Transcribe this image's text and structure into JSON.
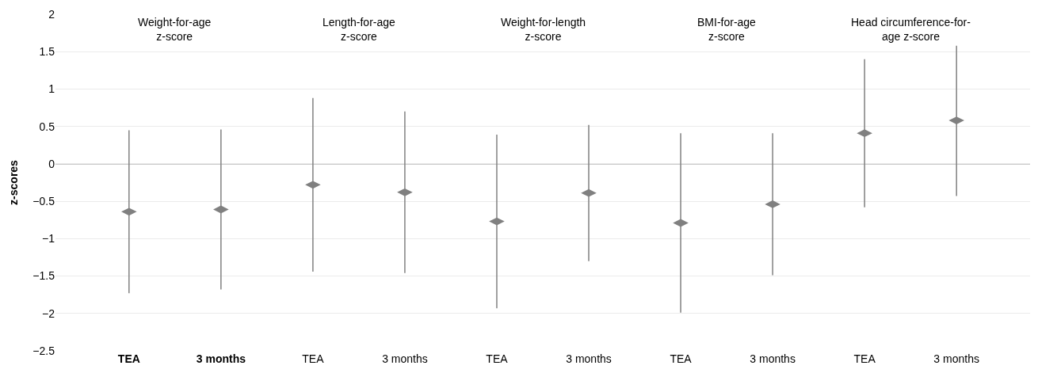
{
  "chart_data": {
    "type": "scatter",
    "ylabel": "z-scores",
    "categories": [
      "TEA",
      "3 months",
      "TEA",
      "3 months",
      "TEA",
      "3 months",
      "TEA",
      "3 months",
      "TEA",
      "3 months"
    ],
    "values": [
      -0.64,
      -0.61,
      -0.28,
      -0.38,
      -0.77,
      -0.39,
      -0.79,
      -0.54,
      0.41,
      0.58
    ],
    "errors": [
      [
        -1.73,
        0.45
      ],
      [
        -1.68,
        0.46
      ],
      [
        -1.44,
        0.88
      ],
      [
        -1.46,
        0.7
      ],
      [
        -1.93,
        0.39
      ],
      [
        -1.3,
        0.52
      ],
      [
        -1.99,
        0.41
      ],
      [
        -1.49,
        0.41
      ],
      [
        -0.58,
        1.4
      ],
      [
        -0.43,
        1.58
      ]
    ],
    "color": "#808080",
    "marker": "diamond",
    "annotations": [
      "Weight-for-age\nz-score",
      "Length-for-age\nz-score",
      "Weight-for-length\nz-score",
      "BMI-for-age\nz-score",
      "Head circumference-for-\nage z-score"
    ],
    "ylim": [
      -2.5,
      2
    ],
    "yticks": [
      {
        "value": -2.5,
        "label": "−2.5"
      },
      {
        "value": -2,
        "label": "−2"
      },
      {
        "value": -1.5,
        "label": "−1.5"
      },
      {
        "value": -1,
        "label": "−1"
      },
      {
        "value": -0.5,
        "label": "−0.5"
      },
      0,
      0.5,
      1,
      1.5,
      2
    ],
    "grid": "y",
    "ref_lines": [
      {
        "axis": "y",
        "value": 0,
        "color": "#c8c8c8"
      }
    ]
  }
}
